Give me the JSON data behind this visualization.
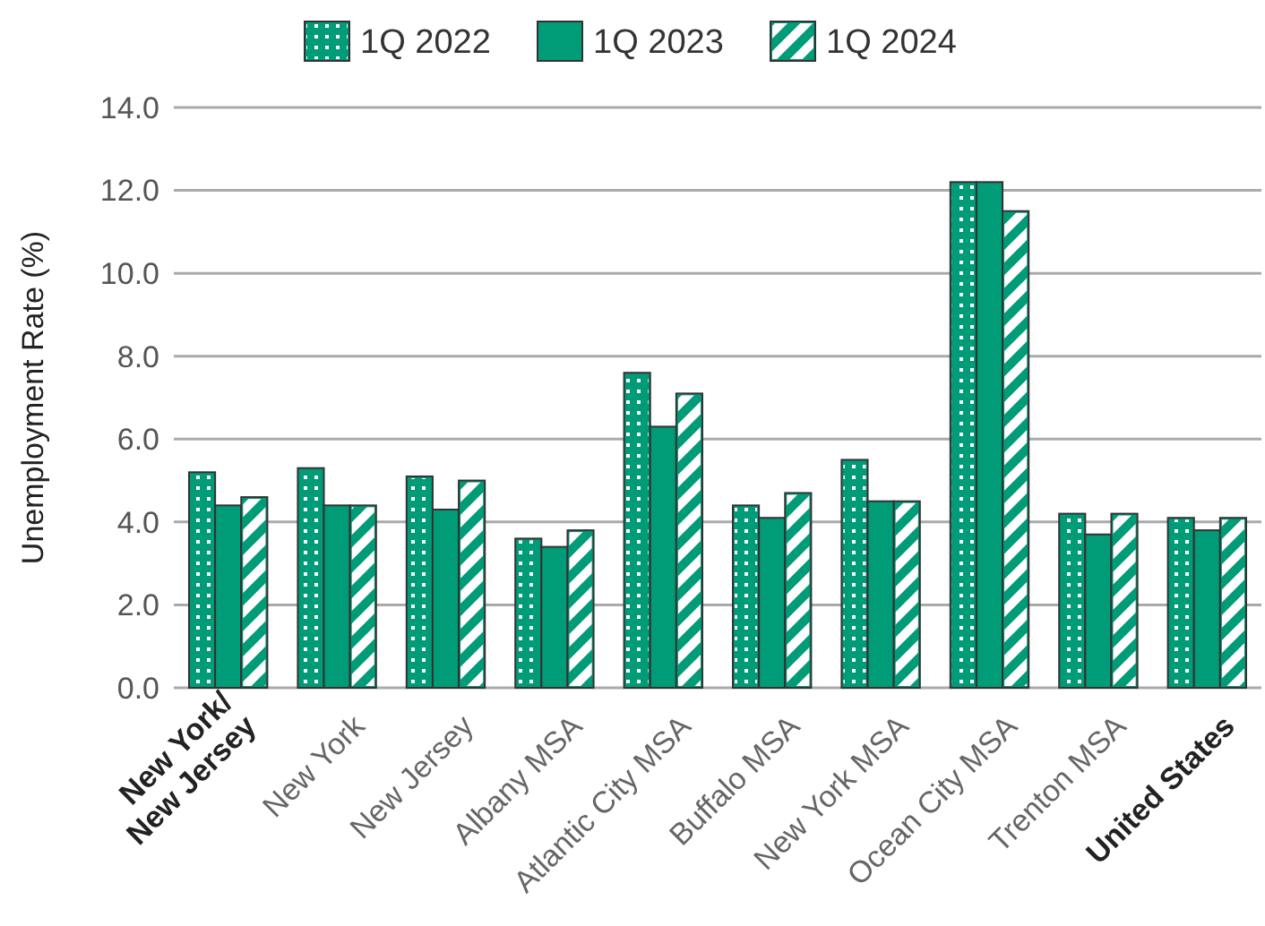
{
  "chart_data": {
    "type": "bar",
    "ylabel": "Unemployment Rate (%)",
    "categories": [
      "New York/\nNew Jersey",
      "New York",
      "New Jersey",
      "Albany MSA",
      "Atlantic City MSA",
      "Buffalo MSA",
      "New York MSA",
      "Ocean City MSA",
      "Trenton MSA",
      "United States"
    ],
    "series": [
      {
        "name": "1Q 2022",
        "color": "#009b77",
        "values": [
          5.2,
          5.3,
          5.1,
          3.6,
          7.6,
          4.4,
          5.5,
          12.2,
          4.2,
          4.1
        ]
      },
      {
        "name": "1Q 2023",
        "color": "#009b77",
        "values": [
          4.4,
          4.4,
          4.3,
          3.4,
          6.3,
          4.1,
          4.5,
          12.2,
          3.7,
          3.8
        ]
      },
      {
        "name": "1Q 2024",
        "color": "#009b77",
        "values": [
          4.6,
          4.4,
          5.0,
          3.8,
          7.1,
          4.7,
          4.5,
          11.5,
          4.2,
          4.1
        ]
      }
    ],
    "ylim": [
      0,
      14
    ],
    "yticks": [
      {
        "value": 0,
        "label": "0.0"
      },
      {
        "value": 2,
        "label": "2.0"
      },
      {
        "value": 4,
        "label": "4.0"
      },
      {
        "value": 6,
        "label": "6.0"
      },
      {
        "value": 8,
        "label": "8.0"
      },
      {
        "value": 10,
        "label": "10.0"
      },
      {
        "value": 12,
        "label": "12.0"
      },
      {
        "value": 14,
        "label": "14.0"
      }
    ],
    "grid": "y",
    "legend": "top"
  }
}
